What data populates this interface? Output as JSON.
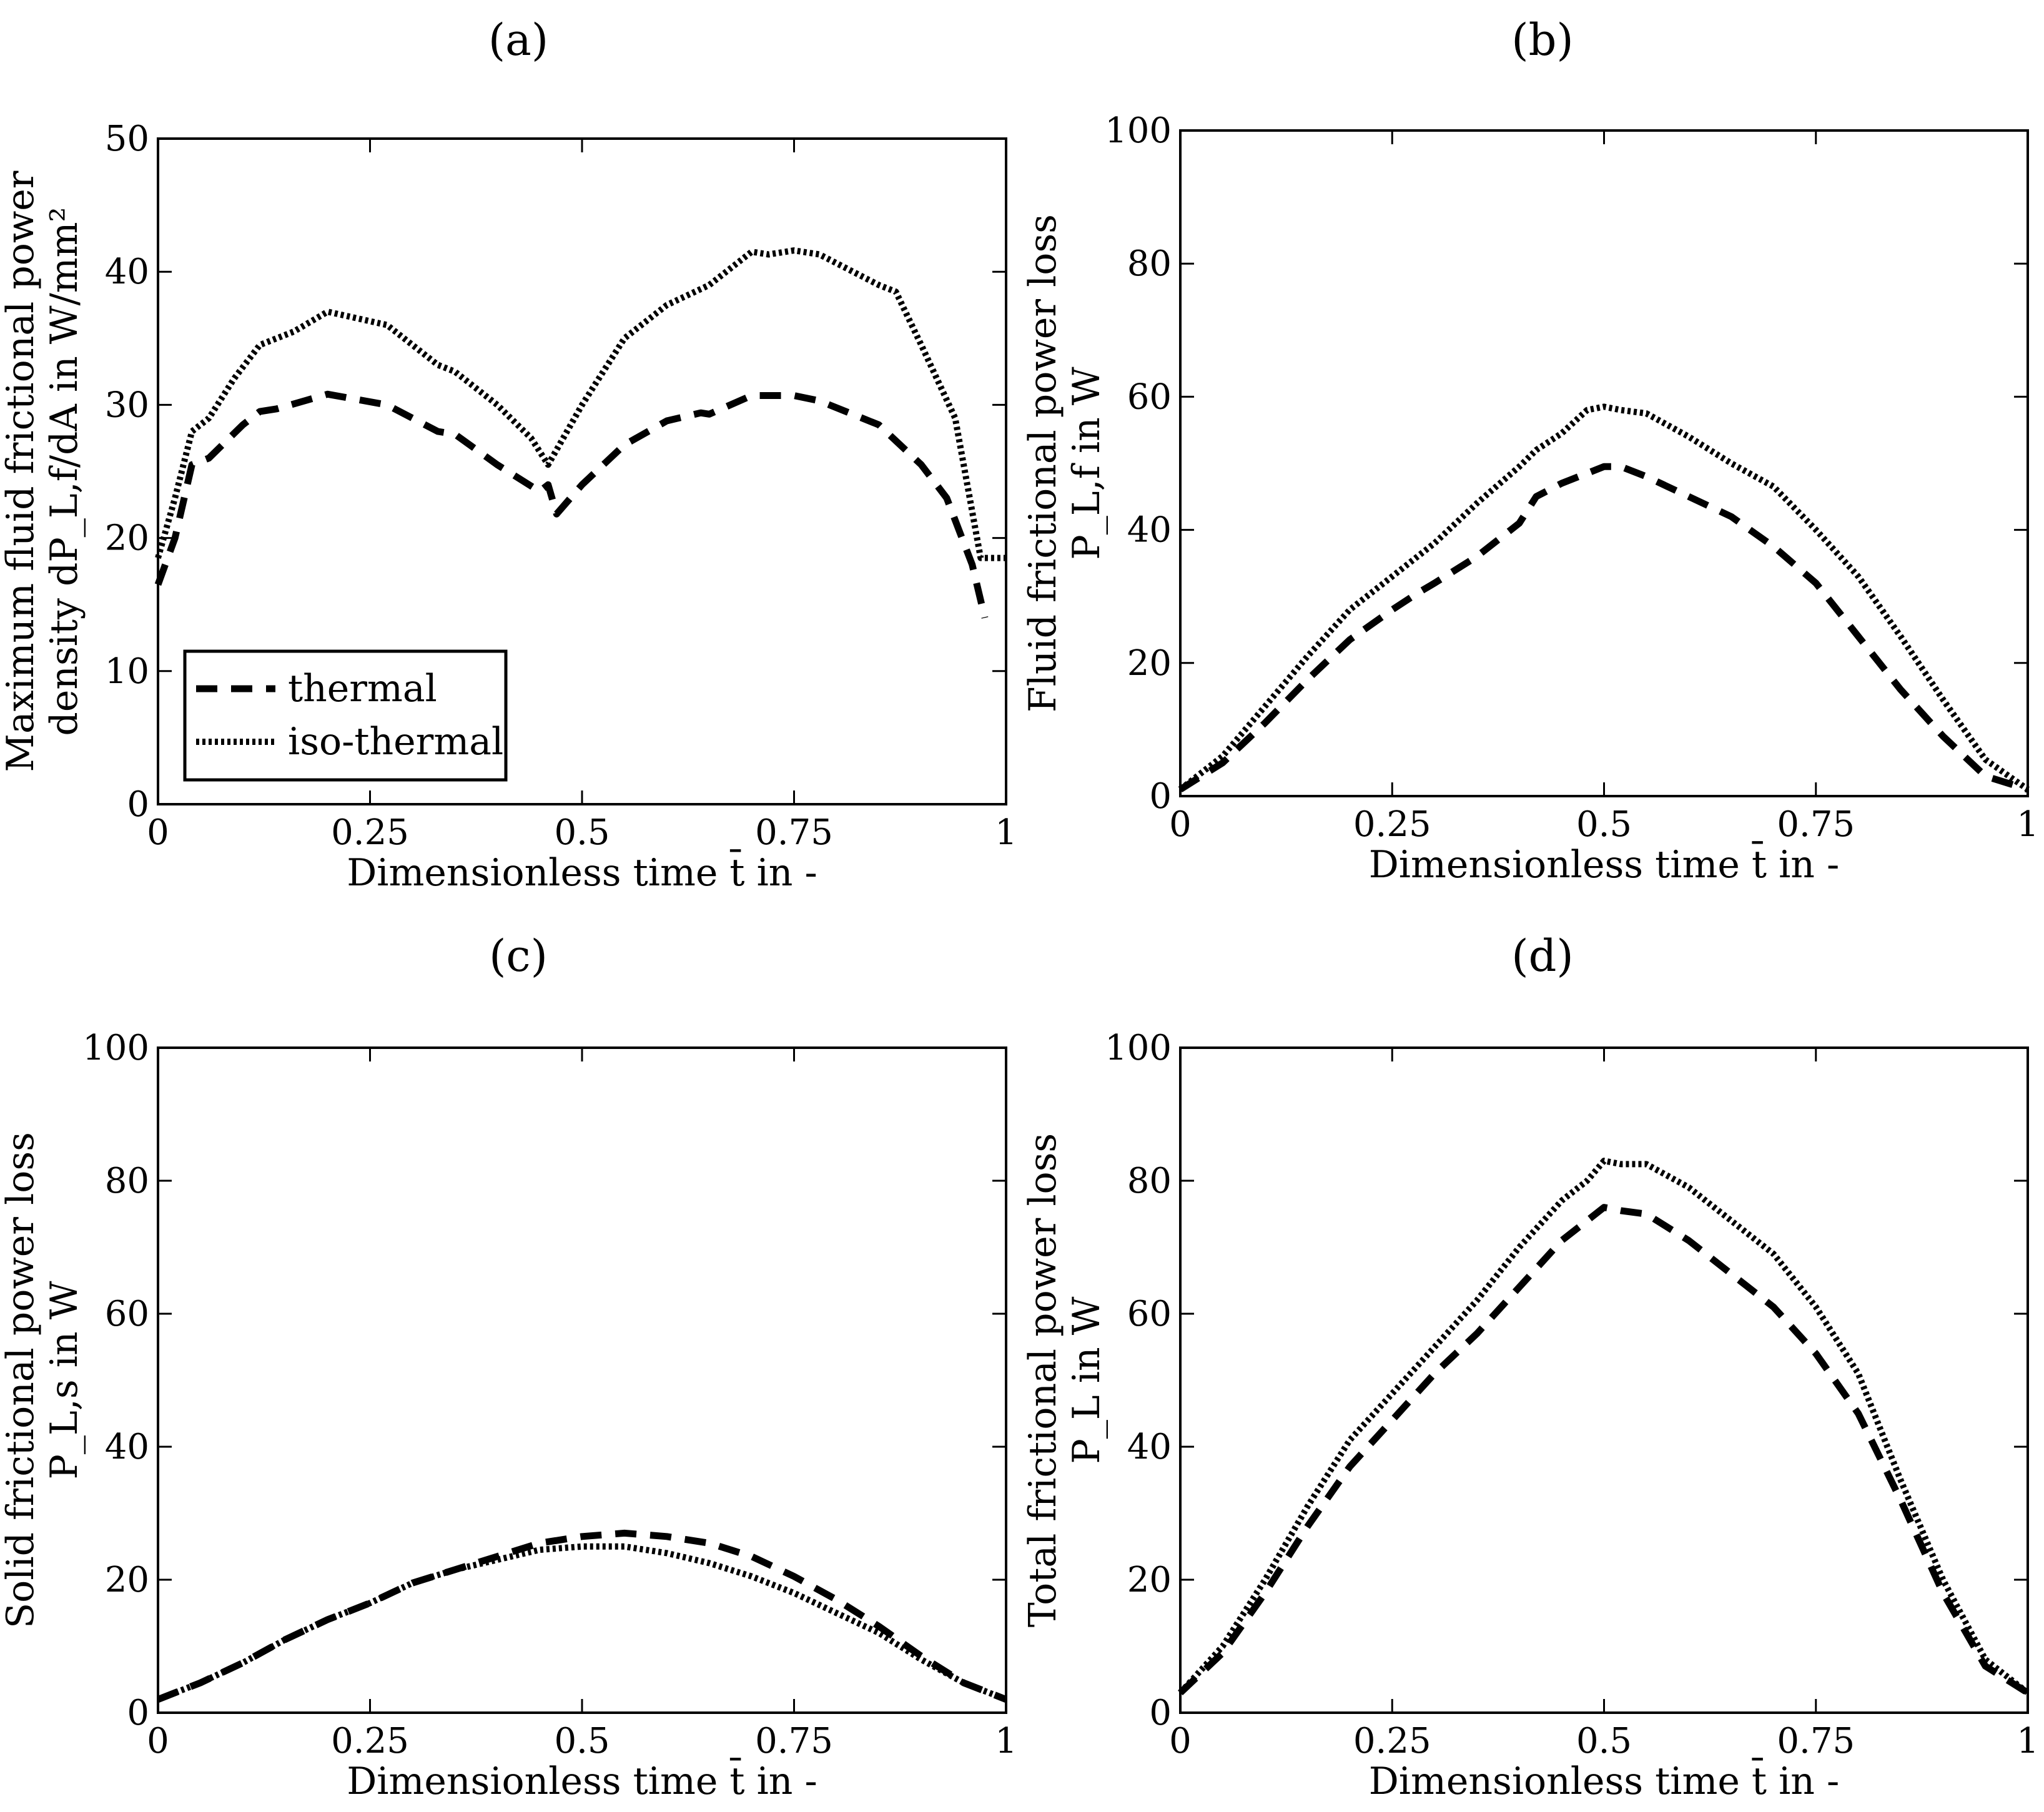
{
  "figure": {
    "legend": {
      "thermal": "thermal",
      "iso": "iso-thermal"
    }
  },
  "chart_data": [
    {
      "id": "a",
      "type": "line",
      "panel_label": "(a)",
      "title": "",
      "xlabel": "Dimensionless time t̄ in -",
      "ylabel_line1": "Maximum fluid frictional power",
      "ylabel_line2": "density dP_L,f/dA in W/mm²",
      "xlim": [
        0,
        1
      ],
      "ylim": [
        0,
        50
      ],
      "xticks": [
        0,
        0.25,
        0.5,
        0.75,
        1
      ],
      "xtick_labels": [
        "0",
        "0.25",
        "0.5",
        "0.75",
        "1"
      ],
      "yticks": [
        0,
        10,
        20,
        30,
        40,
        50
      ],
      "ytick_labels": [
        "0",
        "10",
        "20",
        "30",
        "40",
        "50"
      ],
      "legend": "lower-left",
      "series": [
        {
          "name": "thermal",
          "style": "dashed",
          "x": [
            0,
            0.02,
            0.04,
            0.06,
            0.1,
            0.12,
            0.14,
            0.2,
            0.27,
            0.33,
            0.35,
            0.4,
            0.45,
            0.46,
            0.47,
            0.5,
            0.55,
            0.6,
            0.64,
            0.65,
            0.7,
            0.75,
            0.78,
            0.85,
            0.9,
            0.93,
            0.96,
            0.975
          ],
          "values": [
            16.5,
            20,
            25.5,
            26,
            28.5,
            29.5,
            29.7,
            30.8,
            30,
            28,
            27.8,
            25.5,
            23.5,
            24,
            21.8,
            24,
            27,
            28.8,
            29.4,
            29.3,
            30.7,
            30.7,
            30.3,
            28.5,
            25.5,
            23,
            18,
            14
          ]
        },
        {
          "name": "iso-thermal",
          "style": "dotted",
          "x": [
            0,
            0.02,
            0.04,
            0.06,
            0.09,
            0.12,
            0.16,
            0.2,
            0.27,
            0.33,
            0.35,
            0.4,
            0.44,
            0.46,
            0.5,
            0.55,
            0.6,
            0.65,
            0.7,
            0.72,
            0.75,
            0.78,
            0.85,
            0.87,
            0.9,
            0.94,
            0.97,
            1.0
          ],
          "values": [
            18.5,
            23,
            28,
            29,
            32,
            34.5,
            35.5,
            37,
            36,
            33,
            32.5,
            30,
            27.5,
            25.5,
            30,
            35,
            37.5,
            39,
            41.5,
            41.3,
            41.6,
            41.3,
            39,
            38.5,
            34.5,
            29,
            18.5,
            18.5
          ]
        }
      ]
    },
    {
      "id": "b",
      "type": "line",
      "panel_label": "(b)",
      "title": "",
      "xlabel": "Dimensionless time t̄ in -",
      "ylabel_line1": "Fluid frictional power loss",
      "ylabel_line2": "P_L,f in W",
      "xlim": [
        0,
        1
      ],
      "ylim": [
        0,
        100
      ],
      "xticks": [
        0,
        0.25,
        0.5,
        0.75,
        1
      ],
      "xtick_labels": [
        "0",
        "0.25",
        "0.5",
        "0.75",
        "1"
      ],
      "yticks": [
        0,
        20,
        40,
        60,
        80,
        100
      ],
      "ytick_labels": [
        "0",
        "20",
        "40",
        "60",
        "80",
        "100"
      ],
      "series": [
        {
          "name": "thermal",
          "style": "dashed",
          "x": [
            0,
            0.05,
            0.1,
            0.15,
            0.2,
            0.25,
            0.28,
            0.3,
            0.35,
            0.4,
            0.42,
            0.45,
            0.5,
            0.52,
            0.55,
            0.6,
            0.65,
            0.7,
            0.75,
            0.8,
            0.85,
            0.9,
            0.95,
            1.0
          ],
          "values": [
            1,
            5,
            11,
            17.5,
            23.5,
            28,
            30.5,
            32,
            36,
            41,
            45,
            47,
            49.5,
            49.5,
            48,
            45,
            42,
            37.5,
            32,
            24,
            16,
            9,
            3,
            1
          ]
        },
        {
          "name": "iso-thermal",
          "style": "dotted",
          "x": [
            0,
            0.05,
            0.1,
            0.15,
            0.2,
            0.25,
            0.3,
            0.35,
            0.4,
            0.42,
            0.45,
            0.48,
            0.5,
            0.52,
            0.55,
            0.6,
            0.65,
            0.7,
            0.75,
            0.8,
            0.85,
            0.9,
            0.95,
            1.0
          ],
          "values": [
            1,
            6,
            13.5,
            21,
            28,
            33,
            38,
            44,
            49.5,
            52,
            54.5,
            58,
            58.5,
            58,
            57.5,
            54,
            50,
            46.5,
            40,
            33,
            24,
            14.5,
            5.5,
            1
          ]
        }
      ]
    },
    {
      "id": "c",
      "type": "line",
      "panel_label": "(c)",
      "title": "",
      "xlabel": "Dimensionless time t̄ in -",
      "ylabel_line1": "Solid frictional power loss",
      "ylabel_line2": "P_L,s in W",
      "xlim": [
        0,
        1
      ],
      "ylim": [
        0,
        100
      ],
      "xticks": [
        0,
        0.25,
        0.5,
        0.75,
        1
      ],
      "xtick_labels": [
        "0",
        "0.25",
        "0.5",
        "0.75",
        "1"
      ],
      "yticks": [
        0,
        20,
        40,
        60,
        80,
        100
      ],
      "ytick_labels": [
        "0",
        "20",
        "40",
        "60",
        "80",
        "100"
      ],
      "series": [
        {
          "name": "thermal",
          "style": "dashed",
          "x": [
            0,
            0.05,
            0.1,
            0.15,
            0.2,
            0.25,
            0.3,
            0.35,
            0.4,
            0.45,
            0.5,
            0.55,
            0.6,
            0.65,
            0.7,
            0.75,
            0.8,
            0.85,
            0.9,
            0.95,
            1.0
          ],
          "values": [
            2,
            4.5,
            7.5,
            11,
            14,
            16.5,
            19.5,
            21.5,
            23.5,
            25.5,
            26.5,
            27,
            26.5,
            25.5,
            23.5,
            20.5,
            17,
            13,
            8.5,
            4.5,
            2
          ]
        },
        {
          "name": "iso-thermal",
          "style": "dotted",
          "x": [
            0,
            0.05,
            0.1,
            0.15,
            0.2,
            0.25,
            0.3,
            0.35,
            0.4,
            0.45,
            0.5,
            0.55,
            0.6,
            0.65,
            0.7,
            0.75,
            0.8,
            0.85,
            0.9,
            0.95,
            1.0
          ],
          "values": [
            2,
            4.5,
            7.5,
            11,
            14,
            16.5,
            19.5,
            21.5,
            23,
            24.5,
            25,
            25,
            24,
            22.5,
            20.5,
            18,
            15,
            12,
            8,
            4.5,
            2
          ]
        }
      ]
    },
    {
      "id": "d",
      "type": "line",
      "panel_label": "(d)",
      "title": "",
      "xlabel": "Dimensionless time t̄ in -",
      "ylabel_line1": "Total frictional power loss",
      "ylabel_line2": "P_L in W",
      "xlim": [
        0,
        1
      ],
      "ylim": [
        0,
        100
      ],
      "xticks": [
        0,
        0.25,
        0.5,
        0.75,
        1
      ],
      "xtick_labels": [
        "0",
        "0.25",
        "0.5",
        "0.75",
        "1"
      ],
      "yticks": [
        0,
        20,
        40,
        60,
        80,
        100
      ],
      "ytick_labels": [
        "0",
        "20",
        "40",
        "60",
        "80",
        "100"
      ],
      "series": [
        {
          "name": "thermal",
          "style": "dashed",
          "x": [
            0,
            0.05,
            0.1,
            0.15,
            0.2,
            0.25,
            0.3,
            0.35,
            0.4,
            0.45,
            0.48,
            0.5,
            0.52,
            0.55,
            0.6,
            0.65,
            0.7,
            0.75,
            0.8,
            0.85,
            0.9,
            0.95,
            1.0
          ],
          "values": [
            3,
            9,
            18,
            28,
            37,
            44,
            51,
            57,
            64,
            71,
            74,
            76,
            75.5,
            75,
            71,
            66,
            61,
            54,
            45,
            32,
            18,
            7,
            3
          ]
        },
        {
          "name": "iso-thermal",
          "style": "dotted",
          "x": [
            0,
            0.05,
            0.1,
            0.15,
            0.2,
            0.25,
            0.3,
            0.35,
            0.4,
            0.45,
            0.48,
            0.5,
            0.52,
            0.55,
            0.6,
            0.65,
            0.7,
            0.75,
            0.8,
            0.85,
            0.9,
            0.95,
            1.0
          ],
          "values": [
            3,
            10,
            20,
            31,
            41,
            48,
            55,
            62,
            70,
            77,
            80,
            83,
            82.5,
            82.5,
            79,
            74,
            69,
            61,
            51,
            35,
            20,
            8,
            3
          ]
        }
      ]
    }
  ]
}
